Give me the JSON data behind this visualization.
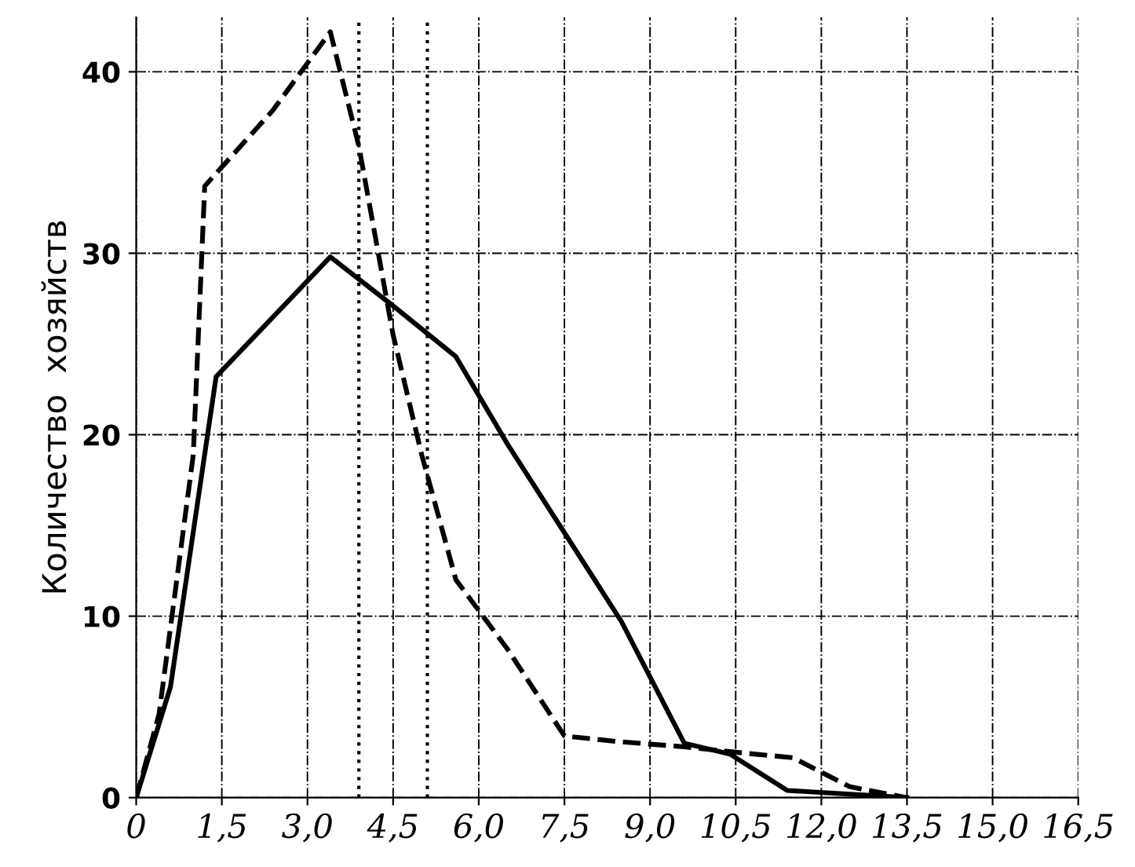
{
  "chart_data": {
    "type": "line",
    "ylabel": "Количество  хозяйств",
    "xlim": [
      0,
      16.5
    ],
    "ylim": [
      0,
      43
    ],
    "xticks": [
      {
        "value": 0,
        "label": "0"
      },
      {
        "value": 1.5,
        "label": "1,5"
      },
      {
        "value": 3,
        "label": "3,0"
      },
      {
        "value": 4.5,
        "label": "4,5"
      },
      {
        "value": 6,
        "label": "6,0"
      },
      {
        "value": 7.5,
        "label": "7,5"
      },
      {
        "value": 9,
        "label": "9,0"
      },
      {
        "value": 10.5,
        "label": "10,5"
      },
      {
        "value": 12,
        "label": "12,0"
      },
      {
        "value": 13.5,
        "label": "13,5"
      },
      {
        "value": 15,
        "label": "15,0"
      },
      {
        "value": 16.5,
        "label": "16,5"
      }
    ],
    "yticks": [
      0,
      10,
      20,
      30,
      40
    ],
    "grid": true,
    "marker": "none",
    "series": [
      {
        "color": "#000000",
        "line_style": "dashed",
        "x": [
          0,
          0.4,
          1.0,
          1.2,
          2.4,
          3.4,
          3.9,
          4.5,
          5.0,
          5.6,
          6.5,
          7.5,
          8.4,
          9.6,
          10.5,
          11.5,
          12.5,
          13.5
        ],
        "values": [
          0,
          4.6,
          18.9,
          33.7,
          37.9,
          42.2,
          35.9,
          25.5,
          18.9,
          12.0,
          8.2,
          3.4,
          3.1,
          2.8,
          2.5,
          2.2,
          0.6,
          0
        ]
      },
      {
        "color": "#000000",
        "line_style": "solid",
        "x": [
          0,
          0.6,
          1.4,
          3.4,
          4.5,
          5.6,
          6.5,
          8.5,
          9.6,
          10.4,
          11.4,
          13.5
        ],
        "values": [
          0,
          6.1,
          23.2,
          29.8,
          27.1,
          24.3,
          19.5,
          9.7,
          3.0,
          2.4,
          0.4,
          0
        ]
      }
    ],
    "ref_lines": [
      {
        "axis": "x",
        "value": 3.9,
        "line_style": "dotted",
        "color": "#000000"
      },
      {
        "axis": "x",
        "value": 5.1,
        "line_style": "dotted",
        "color": "#000000"
      }
    ]
  }
}
